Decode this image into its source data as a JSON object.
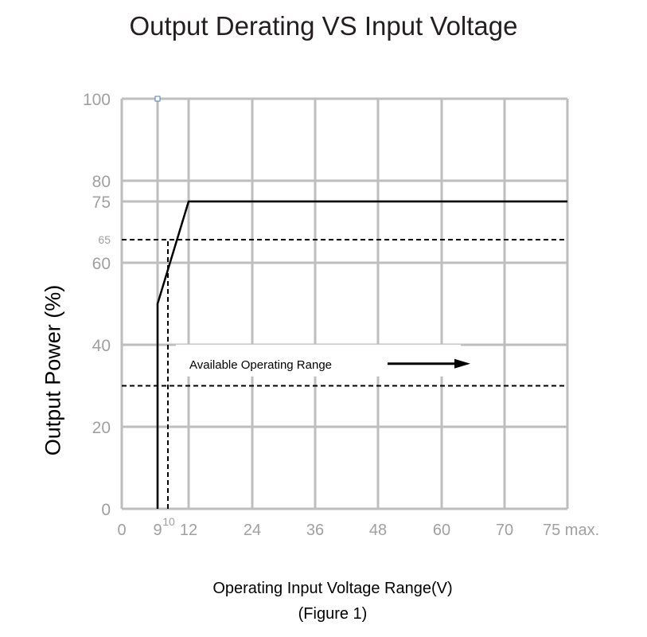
{
  "chart_data": {
    "type": "line",
    "title": "Output Derating VS Input Voltage",
    "xlabel": "Operating Input Voltage Range(V)",
    "ylabel": "Output Power (%)",
    "caption": "(Figure 1)",
    "x_ticks": [
      {
        "value": 0,
        "label": "0"
      },
      {
        "value": 9,
        "label": "9"
      },
      {
        "value": 10,
        "label": "10"
      },
      {
        "value": 12,
        "label": "12"
      },
      {
        "value": 24,
        "label": "24"
      },
      {
        "value": 36,
        "label": "36"
      },
      {
        "value": 48,
        "label": "48"
      },
      {
        "value": 60,
        "label": "60"
      },
      {
        "value": 70,
        "label": "70"
      },
      {
        "value": 75,
        "label": "75 max."
      }
    ],
    "y_ticks": [
      {
        "value": 0,
        "label": "0"
      },
      {
        "value": 20,
        "label": "20"
      },
      {
        "value": 40,
        "label": "40"
      },
      {
        "value": 60,
        "label": "60"
      },
      {
        "value": 65,
        "label": "65"
      },
      {
        "value": 75,
        "label": "75"
      },
      {
        "value": 80,
        "label": "80"
      },
      {
        "value": 100,
        "label": "100"
      }
    ],
    "x_gridlines": [
      0,
      9,
      12,
      24,
      36,
      48,
      60,
      70,
      75
    ],
    "y_gridlines": [
      0,
      20,
      40,
      60,
      75,
      80,
      100
    ],
    "xlim": [
      0,
      75
    ],
    "ylim": [
      0,
      100
    ],
    "grid": true,
    "series": [
      {
        "style": "solid",
        "points": [
          [
            9,
            0
          ],
          [
            9,
            50
          ],
          [
            12,
            75
          ],
          [
            75,
            75
          ]
        ]
      }
    ],
    "reference_lines": [
      {
        "style": "dashed",
        "points": [
          [
            0,
            65
          ],
          [
            75,
            65
          ]
        ]
      },
      {
        "style": "dashed",
        "points": [
          [
            0,
            30
          ],
          [
            75,
            30
          ]
        ]
      },
      {
        "style": "dashed",
        "points": [
          [
            10,
            0
          ],
          [
            10,
            65
          ]
        ]
      }
    ],
    "annotation": {
      "text": "Available Operating Range",
      "x": 12,
      "y": 35,
      "arrow_from": [
        48,
        35
      ],
      "arrow_to": [
        60,
        35
      ]
    }
  }
}
